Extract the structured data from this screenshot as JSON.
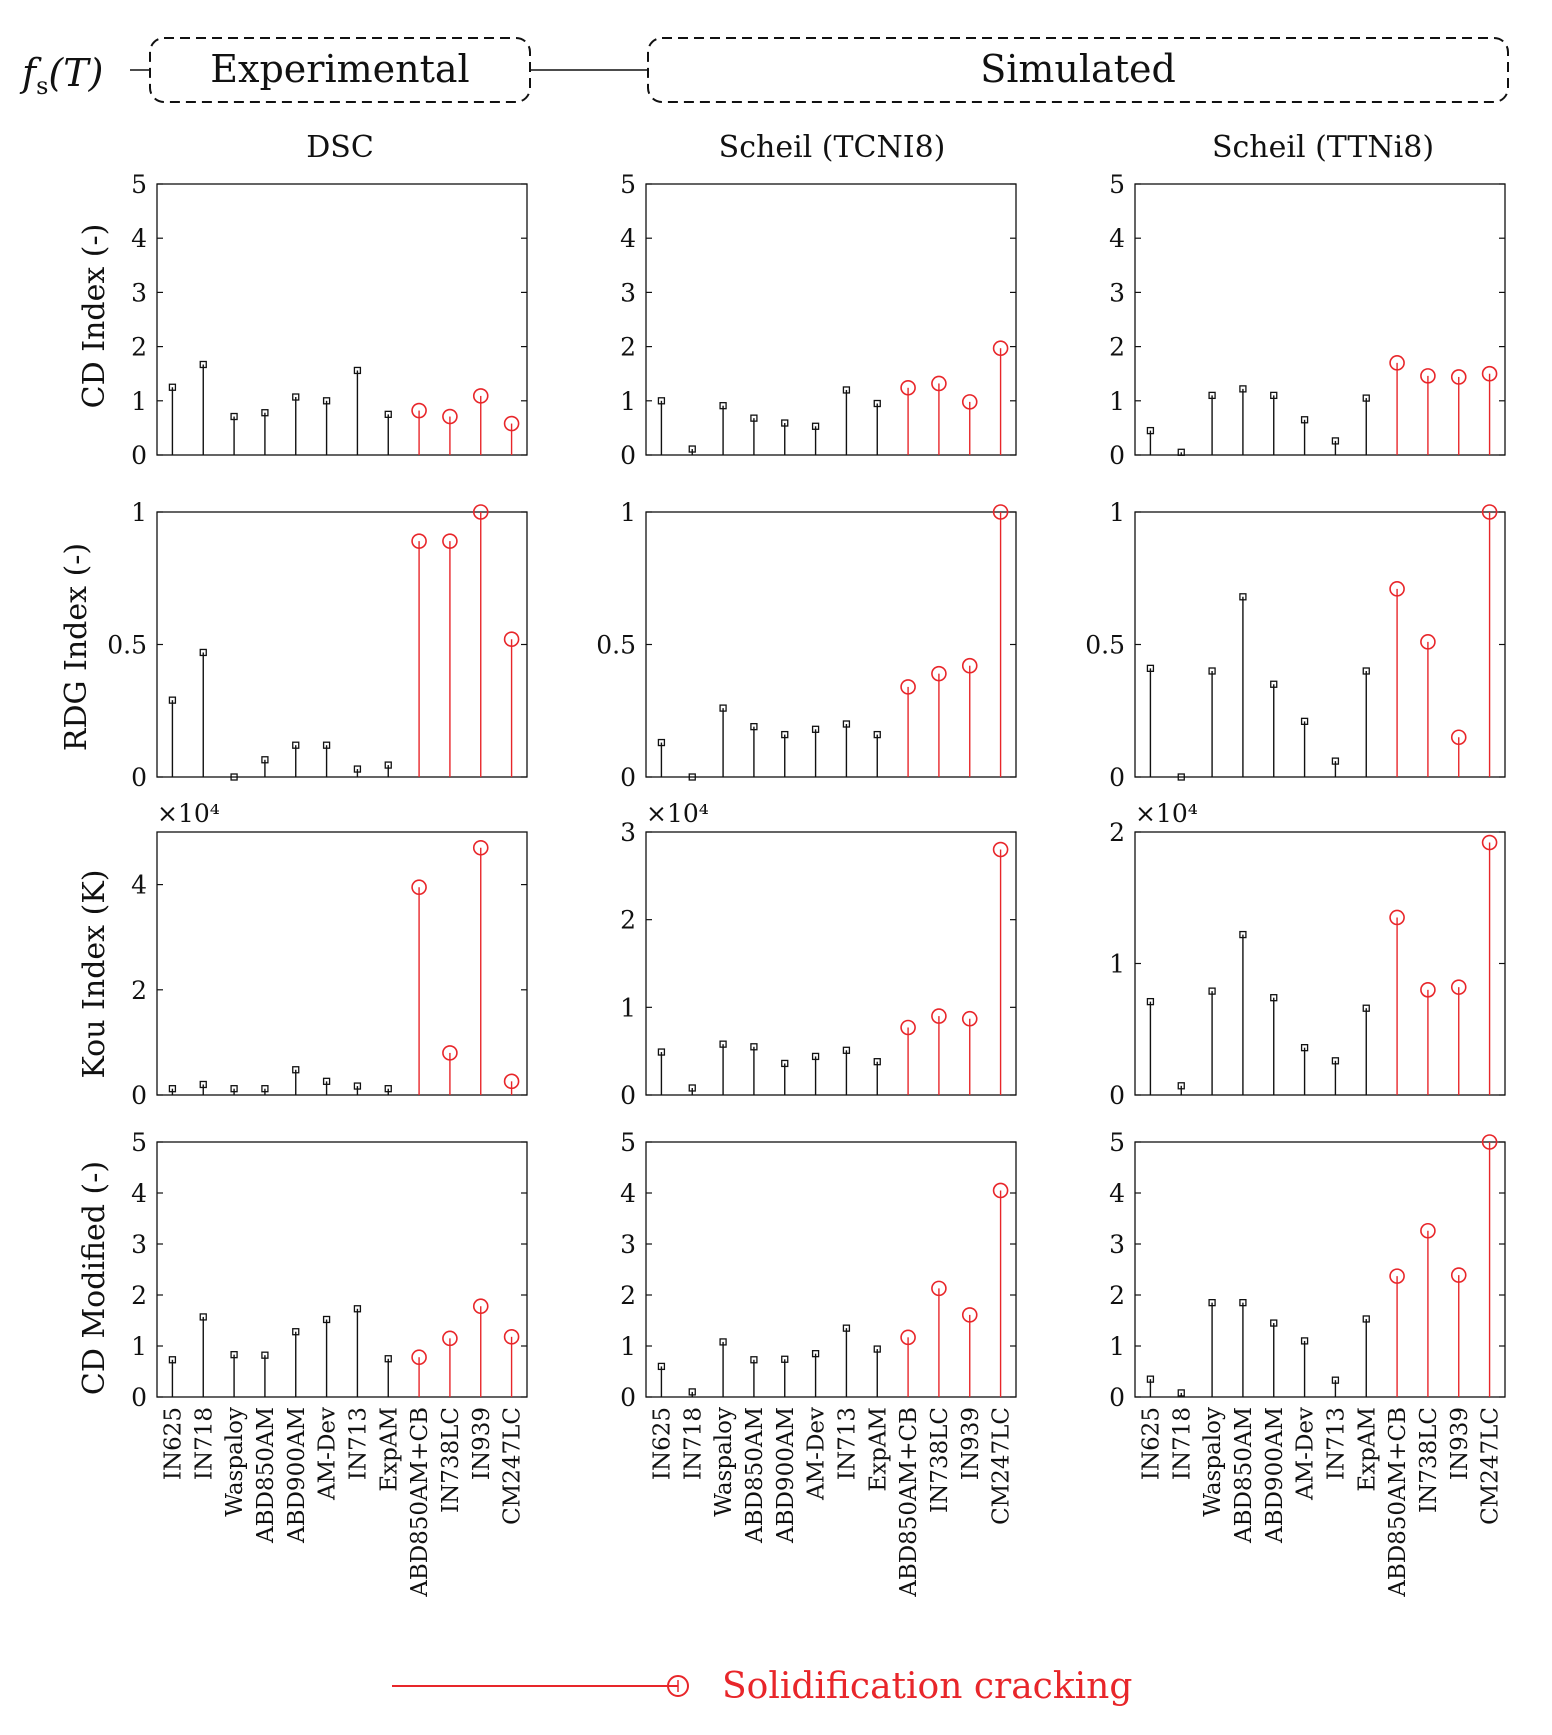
{
  "header": {
    "row_label": "fs(T)",
    "row_label_main": "f",
    "row_label_sub": "s",
    "row_label_arg": "(T)",
    "experimental": "Experimental",
    "simulated": "Simulated"
  },
  "columns": [
    "DSC",
    "Scheil (TCNI8)",
    "Scheil (TTNi8)"
  ],
  "legend": {
    "label": "Solidification cracking"
  },
  "colors": {
    "safe": "#111111",
    "cracking": "#e8262a"
  },
  "chart_data": {
    "type": "stem",
    "categories": [
      "IN625",
      "IN718",
      "Waspaloy",
      "ABD850AM",
      "ABD900AM",
      "AM-Dev",
      "IN713",
      "ExpAM",
      "ABD850AM+CB",
      "IN738LC",
      "IN939",
      "CM247LC"
    ],
    "cracking_from_index": 8,
    "rows": [
      {
        "ylabel": "CD Index (-)",
        "ylim": [
          0,
          5
        ],
        "ticks": [
          "0",
          "1",
          "2",
          "3",
          "4",
          "5"
        ],
        "tick_values": [
          0,
          1,
          2,
          3,
          4,
          5
        ],
        "multiplier": ""
      },
      {
        "ylabel": "RDG Index (-)",
        "ylim": [
          0,
          1
        ],
        "ticks": [
          "0",
          "0.5",
          "1"
        ],
        "tick_values": [
          0,
          0.5,
          1
        ],
        "multiplier": ""
      },
      {
        "ylabel": "Kou Index (K)",
        "ylim": null,
        "ticks": null,
        "tick_values": null,
        "multiplier": "×10⁴"
      },
      {
        "ylabel": "CD Modified (-)",
        "ylim": [
          0,
          5
        ],
        "ticks": [
          "0",
          "1",
          "2",
          "3",
          "4",
          "5"
        ],
        "tick_values": [
          0,
          1,
          2,
          3,
          4,
          5
        ],
        "multiplier": ""
      }
    ],
    "kou_axes": [
      {
        "ylim": [
          0,
          50000
        ],
        "ticks": [
          "0",
          "2",
          "4"
        ],
        "tick_values": [
          0,
          20000,
          40000
        ]
      },
      {
        "ylim": [
          0,
          30000
        ],
        "ticks": [
          "0",
          "1",
          "2",
          "3"
        ],
        "tick_values": [
          0,
          10000,
          20000,
          30000
        ]
      },
      {
        "ylim": [
          0,
          20000
        ],
        "ticks": [
          "0",
          "1",
          "2"
        ],
        "tick_values": [
          0,
          10000,
          20000
        ]
      }
    ],
    "series": [
      {
        "name": "DSC",
        "cd_index": [
          1.25,
          1.67,
          0.71,
          0.78,
          1.07,
          1.0,
          1.56,
          0.75,
          0.82,
          0.71,
          1.09,
          0.58
        ],
        "rdg_index": [
          0.29,
          0.47,
          0.0,
          0.065,
          0.12,
          0.12,
          0.03,
          0.045,
          0.89,
          0.89,
          1.0,
          0.52
        ],
        "kou_index": [
          1200,
          2000,
          1200,
          1200,
          4800,
          2600,
          1700,
          1200,
          39500,
          8000,
          47000,
          2600
        ],
        "cd_modified": [
          0.73,
          1.57,
          0.83,
          0.82,
          1.28,
          1.52,
          1.73,
          0.75,
          0.78,
          1.15,
          1.78,
          1.18
        ]
      },
      {
        "name": "Scheil (TCNI8)",
        "cd_index": [
          1.0,
          0.11,
          0.91,
          0.68,
          0.59,
          0.53,
          1.2,
          0.95,
          1.24,
          1.32,
          0.98,
          1.97
        ],
        "rdg_index": [
          0.13,
          0.0,
          0.26,
          0.19,
          0.16,
          0.18,
          0.2,
          0.16,
          0.34,
          0.39,
          0.42,
          1.0
        ],
        "kou_index": [
          4900,
          800,
          5800,
          5500,
          3600,
          4400,
          5100,
          3800,
          7700,
          9000,
          8700,
          28000
        ],
        "cd_modified": [
          0.6,
          0.1,
          1.08,
          0.73,
          0.74,
          0.85,
          1.35,
          0.94,
          1.17,
          2.13,
          1.61,
          4.05
        ]
      },
      {
        "name": "Scheil (TTNi8)",
        "cd_index": [
          0.45,
          0.05,
          1.1,
          1.22,
          1.1,
          0.65,
          0.26,
          1.05,
          1.7,
          1.46,
          1.44,
          1.5
        ],
        "rdg_index": [
          0.41,
          0.0,
          0.4,
          0.68,
          0.35,
          0.21,
          0.06,
          0.4,
          0.71,
          0.51,
          0.15,
          1.0
        ],
        "kou_index": [
          7100,
          700,
          7900,
          12200,
          7400,
          3600,
          2600,
          6600,
          13500,
          8000,
          8200,
          19200
        ],
        "cd_modified": [
          0.35,
          0.08,
          1.85,
          1.85,
          1.45,
          1.1,
          0.33,
          1.53,
          2.37,
          3.26,
          2.39,
          5.0
        ]
      }
    ]
  }
}
